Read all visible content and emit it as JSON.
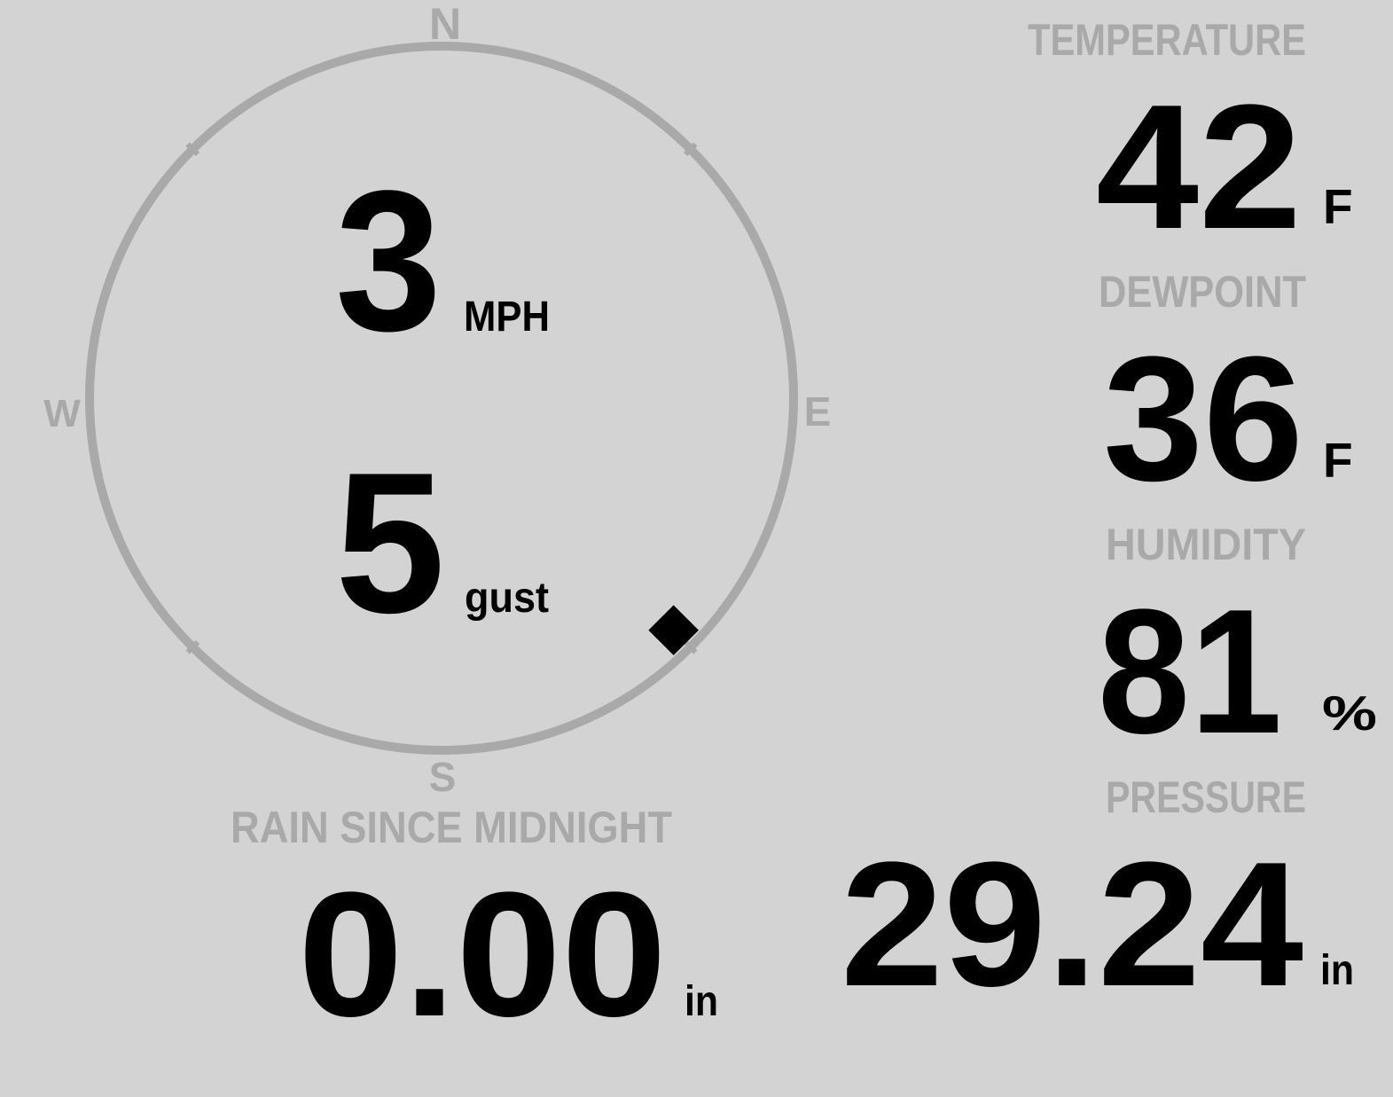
{
  "colors": {
    "background": "#d3d3d3",
    "label": "#a9a9a9",
    "value": "#000000",
    "ring": "#a9a9a9"
  },
  "compass": {
    "north": "N",
    "east": "E",
    "south": "S",
    "west": "W",
    "wind_direction_deg": 135,
    "indicator_icon": "diamond-icon"
  },
  "wind": {
    "speed": "3",
    "speed_unit": "MPH",
    "gust": "5",
    "gust_unit": "gust"
  },
  "temperature": {
    "label": "TEMPERATURE",
    "value": "42",
    "unit": "F"
  },
  "dewpoint": {
    "label": "DEWPOINT",
    "value": "36",
    "unit": "F"
  },
  "humidity": {
    "label": "HUMIDITY",
    "value": "81",
    "unit": "%"
  },
  "pressure": {
    "label": "PRESSURE",
    "value": "29.24",
    "unit": "in"
  },
  "rain": {
    "label": "RAIN SINCE MIDNIGHT",
    "value": "0.00",
    "unit": "in"
  }
}
